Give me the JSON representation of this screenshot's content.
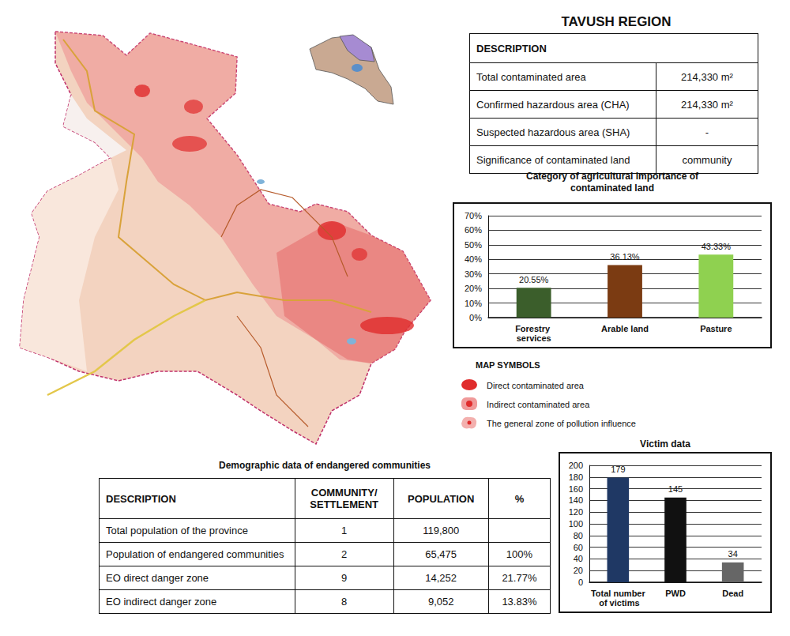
{
  "title": "TAVUSH REGION",
  "description_table": {
    "header": "DESCRIPTION",
    "rows": [
      [
        "Total contaminated area",
        "214,330 m²"
      ],
      [
        "Confirmed hazardous area (CHA)",
        "214,330 m²"
      ],
      [
        "Suspected hazardous area (SHA)",
        "-"
      ],
      [
        "Significance of contaminated land",
        "community"
      ]
    ]
  },
  "chart_data": [
    {
      "type": "bar",
      "title": "Category of agricultural importance of contaminated land",
      "categories": [
        "Forestry services",
        "Arable land",
        "Pasture"
      ],
      "values": [
        20.55,
        36.13,
        43.33
      ],
      "value_labels": [
        "20.55%",
        "36.13%",
        "43.33%"
      ],
      "colors": [
        "#3b5e2b",
        "#7b3b12",
        "#8fd150"
      ],
      "ylim": [
        0,
        70
      ],
      "yticks": [
        {
          "value": 0,
          "label": "0%"
        },
        {
          "value": 10,
          "label": "10%"
        },
        {
          "value": 20,
          "label": "20%"
        },
        {
          "value": 30,
          "label": "30%"
        },
        {
          "value": 40,
          "label": "40%"
        },
        {
          "value": 50,
          "label": "50%"
        },
        {
          "value": 60,
          "label": "60%"
        },
        {
          "value": 70,
          "label": "70%"
        }
      ],
      "grid": true,
      "data_labels": true
    },
    {
      "type": "bar",
      "title": "Victim data",
      "categories": [
        "Total number of victims",
        "PWD",
        "Dead"
      ],
      "values": [
        179,
        145,
        34
      ],
      "colors": [
        "#1f3864",
        "#111111",
        "#666666"
      ],
      "ylim": [
        0,
        200
      ],
      "yticks": [
        0,
        20,
        40,
        60,
        80,
        100,
        120,
        140,
        160,
        180,
        200
      ],
      "grid": true,
      "data_labels": true
    }
  ],
  "map_legend": {
    "title": "MAP SYMBOLS",
    "items": [
      "Direct contaminated area",
      "Indirect contaminated area",
      "The general zone of pollution influence"
    ]
  },
  "demographic_table": {
    "title": "Demographic data of endangered communities",
    "header": [
      "DESCRIPTION",
      "COMMUNITY/SETTLEMENT",
      "POPULATION",
      "%"
    ],
    "rows": [
      [
        "Total population of the province",
        "1",
        "119,800",
        null
      ],
      [
        "Population of endangered communities",
        "2",
        "65,475",
        "100%"
      ],
      [
        "EO direct danger zone",
        "9",
        "14,252",
        "21.77%"
      ],
      [
        "EO indirect danger zone",
        "8",
        "9,052",
        "13.83%"
      ]
    ]
  }
}
